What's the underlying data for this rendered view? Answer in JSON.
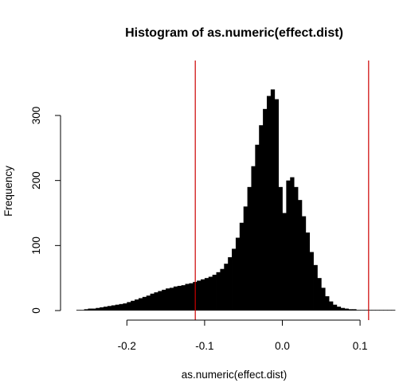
{
  "chart_data": {
    "type": "bar",
    "title": "Histogram of as.numeric(effect.dist)",
    "xlabel": "as.numeric(effect.dist)",
    "ylabel": "Frequency",
    "xlim": [
      -0.27,
      0.145
    ],
    "ylim": [
      0,
      300
    ],
    "x_ticks": [
      -0.2,
      -0.1,
      0.0,
      0.1
    ],
    "x_tick_labels": [
      "-0.2",
      "-0.1",
      "0.0",
      "0.1"
    ],
    "y_ticks": [
      0,
      100,
      200,
      300
    ],
    "y_tick_labels": [
      "0",
      "100",
      "200",
      "300"
    ],
    "bar_color": "#000000",
    "reference_line_color": "#cc0000",
    "reference_lines": [
      -0.112,
      0.111
    ],
    "grid": false,
    "legend": "none",
    "series": [
      {
        "x": [
          -0.2625,
          -0.2575,
          -0.2525,
          -0.2475,
          -0.2425,
          -0.2375,
          -0.2325,
          -0.2275,
          -0.2225,
          -0.2175,
          -0.2125,
          -0.2075,
          -0.2025,
          -0.1975,
          -0.1925,
          -0.1875,
          -0.1825,
          -0.1775,
          -0.1725,
          -0.1675,
          -0.1625,
          -0.1575,
          -0.1525,
          -0.1475,
          -0.1425,
          -0.1375,
          -0.1325,
          -0.1275,
          -0.1225,
          -0.1175,
          -0.1125,
          -0.1075,
          -0.1025,
          -0.0975,
          -0.0925,
          -0.0875,
          -0.0825,
          -0.0775,
          -0.0725,
          -0.0675,
          -0.0625,
          -0.0575,
          -0.0525,
          -0.0475,
          -0.0425,
          -0.0375,
          -0.0325,
          -0.0275,
          -0.0225,
          -0.0175,
          -0.0125,
          -0.0075,
          -0.0025,
          0.0025,
          0.0075,
          0.0125,
          0.0175,
          0.0225,
          0.0275,
          0.0325,
          0.0375,
          0.0425,
          0.0475,
          0.0525,
          0.0575,
          0.0625,
          0.0675,
          0.0725,
          0.0775,
          0.0825,
          0.0875,
          0.0925,
          0.0975,
          0.1025,
          0.1075,
          0.1125,
          0.1175,
          0.1225,
          0.1275,
          0.1325,
          0.1375,
          0.1425
        ],
        "values": [
          1,
          1,
          2,
          3,
          3,
          4,
          5,
          6,
          7,
          8,
          9,
          10,
          11,
          13,
          15,
          17,
          19,
          21,
          23,
          26,
          28,
          30,
          32,
          34,
          35,
          37,
          38,
          39,
          41,
          42,
          44,
          46,
          48,
          50,
          52,
          55,
          59,
          64,
          72,
          82,
          95,
          112,
          135,
          160,
          190,
          222,
          255,
          285,
          310,
          330,
          340,
          325,
          190,
          150,
          200,
          205,
          190,
          170,
          145,
          120,
          90,
          70,
          50,
          35,
          22,
          14,
          9,
          6,
          4,
          3,
          2,
          2,
          1,
          1,
          1,
          1,
          1,
          1,
          1,
          1,
          1,
          1
        ]
      }
    ]
  }
}
